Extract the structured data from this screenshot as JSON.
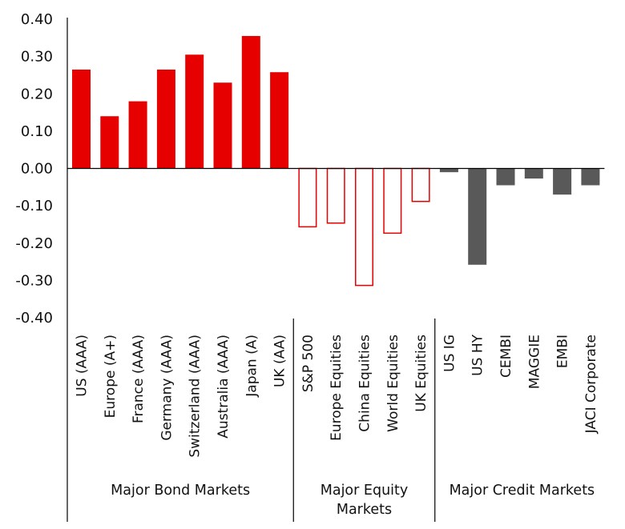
{
  "chart_data": {
    "type": "bar",
    "ylim": [
      -0.4,
      0.4
    ],
    "y_ticks": [
      "0.40",
      "0.30",
      "0.20",
      "0.10",
      "0.00",
      "-0.10",
      "-0.20",
      "-0.30",
      "-0.40"
    ],
    "y_tick_values": [
      0.4,
      0.3,
      0.2,
      0.1,
      0.0,
      -0.1,
      -0.2,
      -0.3,
      -0.4
    ],
    "grid": false,
    "legend": "none",
    "colors": {
      "bond": "#e60000",
      "equity_outline": "#e60000",
      "credit": "#595959",
      "axis": "#000000"
    },
    "groups": [
      {
        "label": "Major Bond Markets",
        "style": "solid-red",
        "categories": [
          "US (AAA)",
          "Europe (A+)",
          "France (AAA)",
          "Germany (AAA)",
          "Switzerland (AAA)",
          "Australia (AAA)",
          "Japan (A)",
          "UK (AA)"
        ],
        "values": [
          0.265,
          0.14,
          0.18,
          0.265,
          0.305,
          0.23,
          0.355,
          0.258
        ]
      },
      {
        "label_lines": [
          "Major Equity",
          "Markets"
        ],
        "style": "outline-red",
        "categories": [
          "S&P 500",
          "Europe Equities",
          "China Equities",
          "World Equities",
          "UK Equities"
        ],
        "values": [
          -0.158,
          -0.148,
          -0.315,
          -0.175,
          -0.09
        ]
      },
      {
        "label": "Major Credit Markets",
        "style": "solid-grey",
        "categories": [
          "US IG",
          "US HY",
          "CEMBI",
          "MAGGIE",
          "EMBI",
          "JACI Corporate"
        ],
        "values": [
          -0.01,
          -0.258,
          -0.045,
          -0.027,
          -0.07,
          -0.045
        ]
      }
    ]
  }
}
